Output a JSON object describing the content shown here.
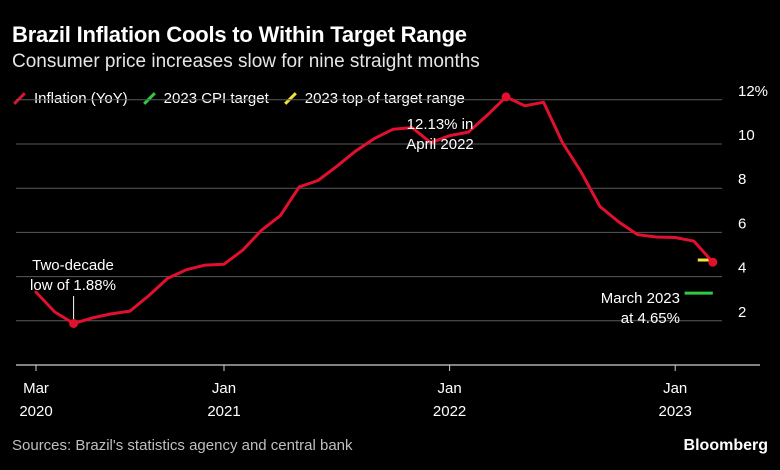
{
  "header": {
    "title": "Brazil Inflation Cools to Within Target Range",
    "subtitle": "Consumer price increases slow for nine straight months"
  },
  "legend": [
    {
      "label": "Inflation (YoY)",
      "color": "#e0102e"
    },
    {
      "label": "2023 CPI target",
      "color": "#2ecc40"
    },
    {
      "label": "2023 top of target range",
      "color": "#f2e33a"
    }
  ],
  "footer": {
    "source": "Sources: Brazil's statistics agency and central bank",
    "brand": "Bloomberg"
  },
  "chart_data": {
    "type": "line",
    "title": "Brazil Inflation Cools to Within Target Range",
    "xlabel": "",
    "ylabel": "",
    "ylim": [
      0,
      12.5
    ],
    "x_ticks": [
      {
        "index": 0,
        "line1": "Mar",
        "line2": "2020"
      },
      {
        "index": 10,
        "line1": "Jan",
        "line2": "2021"
      },
      {
        "index": 22,
        "line1": "Jan",
        "line2": "2022"
      },
      {
        "index": 34,
        "line1": "Jan",
        "line2": "2023"
      }
    ],
    "y_ticks": [
      {
        "value": 2,
        "label": "2"
      },
      {
        "value": 4,
        "label": "4"
      },
      {
        "value": 6,
        "label": "6"
      },
      {
        "value": 8,
        "label": "8"
      },
      {
        "value": 10,
        "label": "10"
      },
      {
        "value": 12,
        "label": "12%"
      }
    ],
    "x_labels": [
      "Mar 2020",
      "Apr 2020",
      "May 2020",
      "Jun 2020",
      "Jul 2020",
      "Aug 2020",
      "Sep 2020",
      "Oct 2020",
      "Nov 2020",
      "Dec 2020",
      "Jan 2021",
      "Feb 2021",
      "Mar 2021",
      "Apr 2021",
      "May 2021",
      "Jun 2021",
      "Jul 2021",
      "Aug 2021",
      "Sep 2021",
      "Oct 2021",
      "Nov 2021",
      "Dec 2021",
      "Jan 2022",
      "Feb 2022",
      "Mar 2022",
      "Apr 2022",
      "May 2022",
      "Jun 2022",
      "Jul 2022",
      "Aug 2022",
      "Sep 2022",
      "Oct 2022",
      "Nov 2022",
      "Dec 2022",
      "Jan 2023",
      "Feb 2023",
      "Mar 2023"
    ],
    "series": [
      {
        "name": "Inflation (YoY)",
        "color": "#e0102e",
        "values": [
          3.3,
          2.4,
          1.88,
          2.13,
          2.31,
          2.44,
          3.14,
          3.92,
          4.31,
          4.52,
          4.56,
          5.2,
          6.1,
          6.76,
          8.06,
          8.35,
          8.99,
          9.68,
          10.25,
          10.67,
          10.74,
          10.06,
          10.38,
          10.54,
          11.3,
          12.13,
          11.73,
          11.89,
          10.07,
          8.73,
          7.17,
          6.47,
          5.9,
          5.79,
          5.77,
          5.6,
          4.65
        ]
      }
    ],
    "reference_lines": [
      {
        "name": "2023 CPI target",
        "value": 3.25,
        "start_index": 34.5,
        "end_index": 36,
        "color": "#2ecc40"
      },
      {
        "name": "2023 top of target range",
        "value": 4.75,
        "start_index": 35.2,
        "end_index": 36,
        "color": "#f2e33a"
      }
    ],
    "annotations": [
      {
        "index": 2,
        "lines": [
          "Two-decade",
          "low of 1.88%"
        ]
      },
      {
        "index": 25,
        "lines": [
          "12.13% in",
          "April 2022"
        ]
      },
      {
        "index": 36,
        "lines": [
          "March 2023",
          "at 4.65%"
        ]
      }
    ]
  }
}
